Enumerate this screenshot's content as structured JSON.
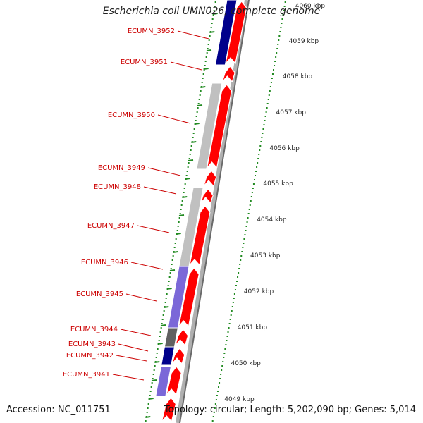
{
  "title": "Escherichia coli UMN026, complete genome",
  "footer": {
    "accession": "Accession: NC_011751",
    "summary": "Topology: circular; Length: 5,202,090 bp; Genes: 5,014"
  },
  "colors": {
    "gene_forward": "#ff0000",
    "gene_light": "#c0c0c0",
    "gene_mid": "#a0a0a0",
    "gene_purple": "#7b68d8",
    "gene_navy": "#00008b",
    "gene_dark": "#606060",
    "tick": "#228b22",
    "label": "#cc0000"
  },
  "scale": {
    "unit": "kbp",
    "ticks": [
      "4049 kbp",
      "4050 kbp",
      "4051 kbp",
      "4052 kbp",
      "4053 kbp",
      "4054 kbp",
      "4055 kbp",
      "4056 kbp",
      "4057 kbp",
      "4058 kbp",
      "4059 kbp",
      "4060 kbp"
    ]
  },
  "gene_labels": [
    "ECUMN_3952",
    "ECUMN_3951",
    "ECUMN_3950",
    "ECUMN_3949",
    "ECUMN_3948",
    "ECUMN_3947",
    "ECUMN_3946",
    "ECUMN_3945",
    "ECUMN_3944",
    "ECUMN_3943",
    "ECUMN_3942",
    "ECUMN_3941"
  ]
}
